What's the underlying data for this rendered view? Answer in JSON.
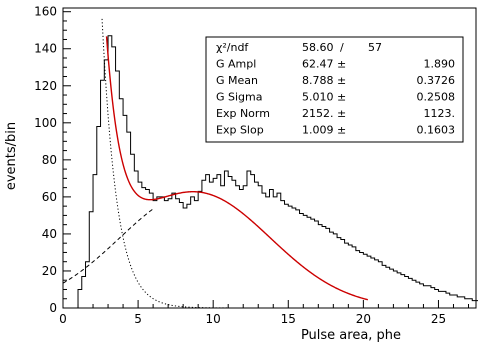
{
  "chart_data": {
    "type": "histogram",
    "title": "",
    "xlabel": "Pulse area, phe",
    "ylabel": "events/bin",
    "xlim": [
      0,
      27.5
    ],
    "ylim": [
      0,
      162
    ],
    "x_ticks": [
      0,
      5,
      10,
      15,
      20,
      25
    ],
    "y_ticks": [
      0,
      20,
      40,
      60,
      80,
      100,
      120,
      140,
      160
    ],
    "grid": false,
    "bin_width": 0.25,
    "histogram_x_start": 0.0,
    "histogram_values": [
      0,
      0,
      0,
      0,
      10,
      17,
      25,
      52,
      72,
      98,
      123,
      134,
      147,
      141,
      128,
      113,
      104,
      95,
      83,
      74,
      68,
      65,
      64,
      62,
      58,
      60,
      60,
      58,
      59,
      62,
      59,
      57,
      54,
      56,
      60,
      58,
      63,
      69,
      72,
      68,
      70,
      72,
      66,
      74,
      71,
      69,
      66,
      64,
      66,
      74,
      72,
      68,
      66,
      62,
      60,
      64,
      60,
      62,
      58,
      56,
      55,
      54,
      53,
      51,
      50,
      49,
      48,
      47,
      45,
      44,
      43,
      41,
      40,
      38,
      37,
      35,
      34,
      33,
      31,
      30,
      29,
      28,
      27,
      26,
      25,
      23,
      22,
      21,
      20,
      19,
      18,
      17,
      16,
      15,
      14,
      13,
      12,
      12,
      11,
      10,
      9,
      9,
      8,
      7,
      7,
      6,
      6,
      5,
      5,
      4,
      4,
      3,
      3,
      3,
      2,
      2,
      2,
      2,
      1,
      1
    ],
    "fit_curves": [
      {
        "style": "solid",
        "color": "#cc0000",
        "formula": "gauss+exp",
        "x_range": [
          2.9,
          20.3
        ]
      },
      {
        "style": "dashed",
        "color": "#000000",
        "formula": "gauss",
        "x_range": [
          0.0,
          6.0
        ]
      },
      {
        "style": "dotted",
        "color": "#000000",
        "formula": "exp",
        "x_range": [
          2.5,
          27.0
        ]
      }
    ],
    "fit_parameters": {
      "g_ampl": 62.47,
      "g_mean": 8.788,
      "g_sigma": 5.01,
      "exp_norm": 2152.0,
      "exp_slope": 1.009
    },
    "stats_box": {
      "rows": [
        {
          "label": "χ²/ndf",
          "value": "58.60",
          "sep": "/",
          "error": "57"
        },
        {
          "label": "G Ampl",
          "value": "62.47 ±",
          "sep": "",
          "error": "1.890"
        },
        {
          "label": "G Mean",
          "value": "8.788 ±",
          "sep": "",
          "error": "0.3726"
        },
        {
          "label": "G Sigma",
          "value": "5.010 ±",
          "sep": "",
          "error": "0.2508"
        },
        {
          "label": "Exp Norm",
          "value": "2152. ±",
          "sep": "",
          "error": "1123."
        },
        {
          "label": "Exp Slop",
          "value": "1.009 ±",
          "sep": "",
          "error": "0.1603"
        }
      ]
    }
  }
}
